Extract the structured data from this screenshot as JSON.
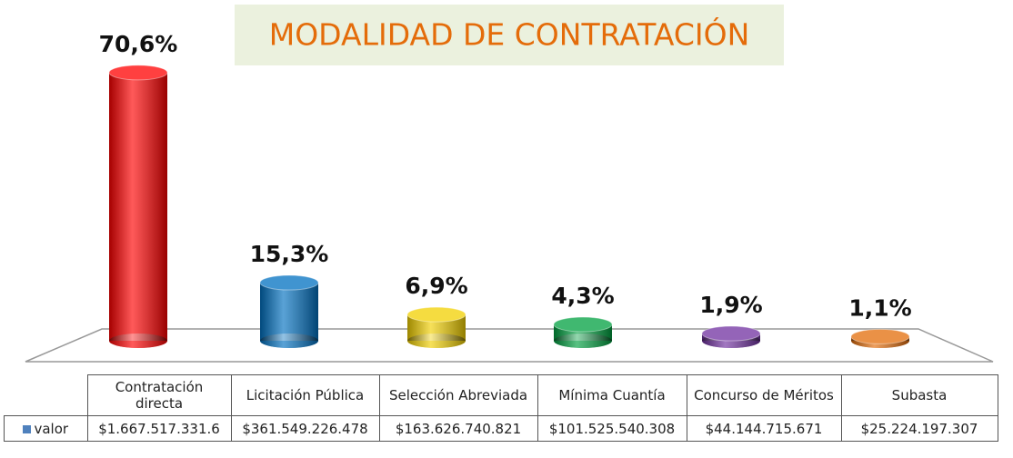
{
  "chart_data": {
    "type": "bar",
    "title": "MODALIDAD DE CONTRATACIÓN",
    "categories": [
      "Contratación directa",
      "Licitación Pública",
      "Selección Abreviada",
      "Mínima Cuantía",
      "Concurso de Méritos",
      "Subasta"
    ],
    "values": [
      70.6,
      15.3,
      6.9,
      4.3,
      1.9,
      1.1
    ],
    "value_labels": [
      "70,6%",
      "15,3%",
      "6,9%",
      "4,3%",
      "1,9%",
      "1,1%"
    ],
    "colors": [
      "#ff0000",
      "#0070c0",
      "#f2d000",
      "#00a040",
      "#7030a0",
      "#e36c09"
    ],
    "legend": "valor",
    "legend_color": "#4f81bd",
    "table_values": [
      "$1.667.517.331.6",
      "$361.549.226.478",
      "$163.626.740.821",
      "$101.525.540.308",
      "$44.144.715.671",
      "$25.224.197.307"
    ]
  }
}
